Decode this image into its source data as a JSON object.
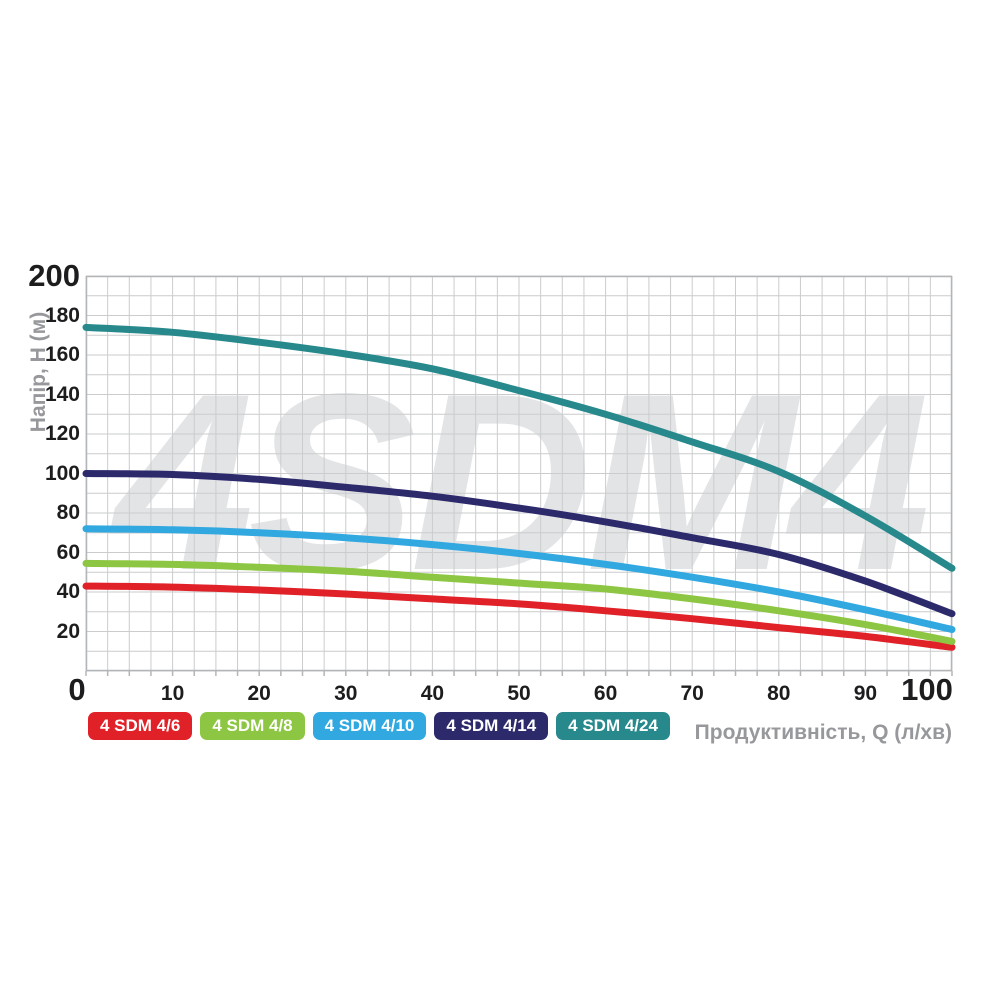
{
  "watermark": "4SDM4",
  "axes": {
    "x": {
      "title": "Продуктивність, Q (л/хв)",
      "min": 0,
      "max": 100,
      "tick_step": 10,
      "minor_step": 2.5,
      "ticks": [
        "0",
        "10",
        "20",
        "30",
        "40",
        "50",
        "60",
        "70",
        "80",
        "90",
        "100"
      ]
    },
    "y": {
      "title": "Напір, H (м)",
      "min": 0,
      "max": 200,
      "tick_step": 20,
      "minor_step": 10,
      "ticks": [
        "200",
        "180",
        "160",
        "140",
        "120",
        "100",
        "80",
        "60",
        "40",
        "20"
      ]
    }
  },
  "chart_data": {
    "type": "line",
    "title": "",
    "xlabel": "Продуктивність, Q (л/хв)",
    "ylabel": "Напір, H (м)",
    "xlim": [
      0,
      100
    ],
    "ylim": [
      0,
      200
    ],
    "grid": true,
    "legend_position": "bottom",
    "watermark_text": "4SDM4",
    "x": [
      0,
      10,
      20,
      30,
      40,
      50,
      60,
      70,
      80,
      90,
      100
    ],
    "series": [
      {
        "name": "4 SDM 4/6",
        "color": "#e02128",
        "values": [
          43,
          42.5,
          41,
          39,
          36.5,
          34,
          30.5,
          26.5,
          22,
          17.5,
          12
        ]
      },
      {
        "name": "4 SDM 4/8",
        "color": "#8dc642",
        "values": [
          54.5,
          54,
          52.5,
          50.5,
          47.5,
          44.5,
          41.5,
          36.5,
          30.5,
          23.5,
          15
        ]
      },
      {
        "name": "4 SDM 4/10",
        "color": "#31a8e0",
        "values": [
          72,
          71.5,
          70,
          67.5,
          64,
          59.5,
          54,
          47.5,
          40,
          31,
          21
        ]
      },
      {
        "name": "4 SDM 4/14",
        "color": "#2d2a6c",
        "values": [
          100,
          99.5,
          97,
          93,
          88.5,
          82.5,
          75.5,
          67.5,
          59,
          45.5,
          29
        ]
      },
      {
        "name": "4 SDM 4/24",
        "color": "#27898c",
        "values": [
          174,
          171.5,
          166.5,
          160.5,
          153,
          142,
          130,
          116,
          101,
          78.5,
          52
        ]
      }
    ]
  },
  "colors": {
    "tick_text": "#1d1d1f",
    "axis_title_text": "#96989b",
    "grid_line": "#caccce",
    "plot_border": "#b3b6b9",
    "watermark": "#e3e4e6",
    "background": "#ffffff"
  }
}
